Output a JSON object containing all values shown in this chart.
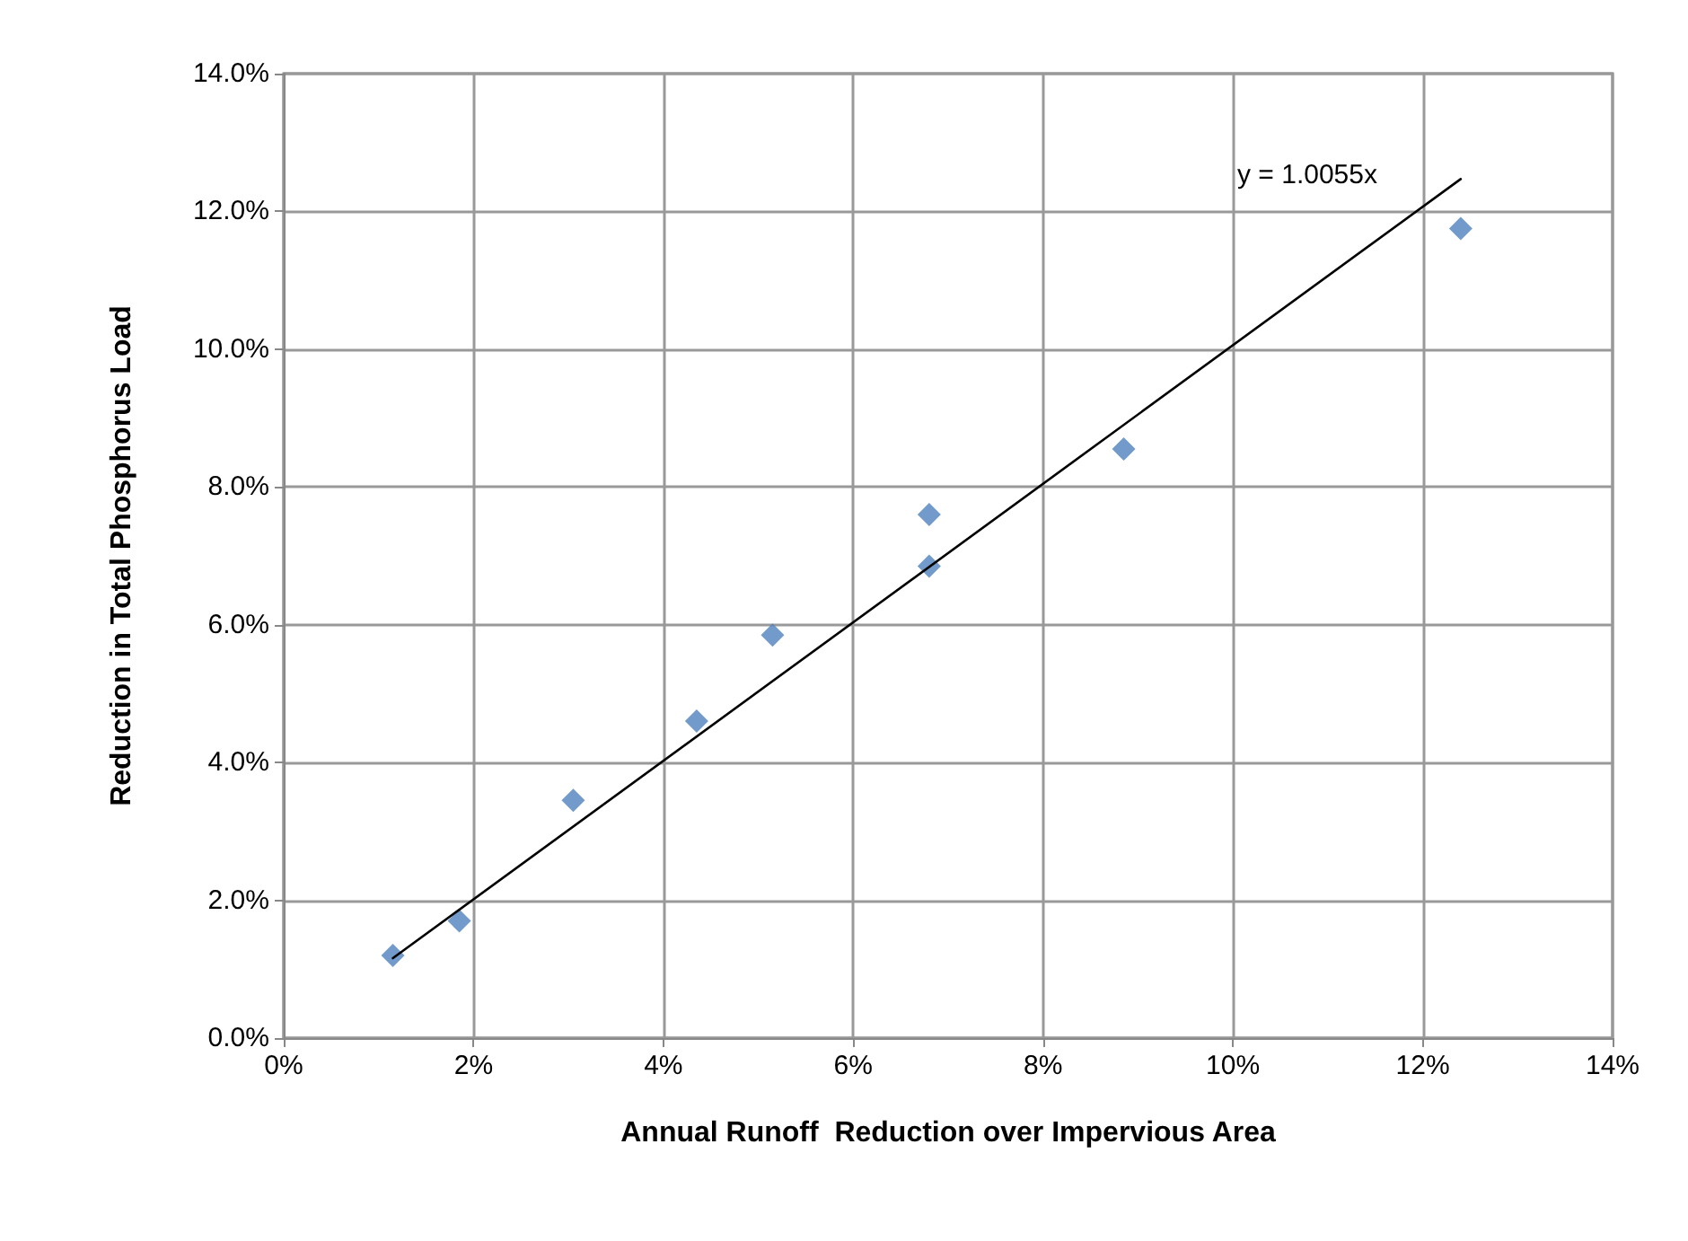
{
  "chart_data": {
    "type": "scatter",
    "xlabel": "Annual Runoff  Reduction over Impervious Area",
    "ylabel": "Reduction in Total Phosphorus Load",
    "x": [
      1.15,
      1.85,
      3.05,
      4.35,
      5.15,
      6.8,
      6.8,
      8.85,
      12.4
    ],
    "series": [
      {
        "color": "#4f81bd",
        "marker": "diamond",
        "values": [
          1.2,
          1.7,
          3.45,
          4.6,
          5.85,
          6.85,
          7.6,
          8.55,
          11.75
        ]
      },
      {
        "type": "line",
        "color": "#000000",
        "marker": "none",
        "x": [
          1.15,
          12.4
        ],
        "values": [
          1.16,
          12.47
        ]
      }
    ],
    "grid": true,
    "xlim": [
      0,
      14
    ],
    "xticks": [
      {
        "value": 0,
        "label": "0%"
      },
      {
        "value": 2,
        "label": "2%"
      },
      {
        "value": 4,
        "label": "4%"
      },
      {
        "value": 6,
        "label": "6%"
      },
      {
        "value": 8,
        "label": "8%"
      },
      {
        "value": 10,
        "label": "10%"
      },
      {
        "value": 12,
        "label": "12%"
      },
      {
        "value": 14,
        "label": "14%"
      }
    ],
    "ylim": [
      0,
      14
    ],
    "yticks": [
      {
        "value": 0,
        "label": "0.0%"
      },
      {
        "value": 2,
        "label": "2.0%"
      },
      {
        "value": 4,
        "label": "4.0%"
      },
      {
        "value": 6,
        "label": "6.0%"
      },
      {
        "value": 8,
        "label": "8.0%"
      },
      {
        "value": 10,
        "label": "10.0%"
      },
      {
        "value": 12,
        "label": "12.0%"
      },
      {
        "value": 14,
        "label": "14.0%"
      }
    ],
    "annotations": [
      "y = 1.0055x"
    ]
  }
}
